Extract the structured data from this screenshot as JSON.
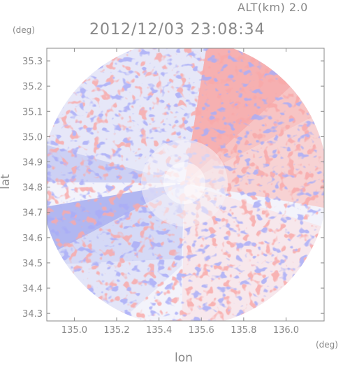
{
  "header": {
    "altitude_label": "ALT(km) 2.0",
    "timestamp": "2012/12/03 23:08:34"
  },
  "axes": {
    "y_unit": "(deg)",
    "x_unit": "(deg)",
    "y_label": "lat",
    "x_label": "lon"
  },
  "map_data": {
    "type": "radar-ppi-doppler",
    "x_ticks": [
      "135.0",
      "135.2",
      "135.4",
      "135.6",
      "135.8",
      "136.0"
    ],
    "x_tick_values": [
      135.0,
      135.2,
      135.4,
      135.6,
      135.8,
      136.0
    ],
    "y_ticks": [
      "34.3",
      "34.4",
      "34.5",
      "34.6",
      "34.7",
      "34.8",
      "34.9",
      "35.0",
      "35.1",
      "35.2",
      "35.3"
    ],
    "y_tick_values": [
      34.3,
      34.4,
      34.5,
      34.6,
      34.7,
      34.8,
      34.9,
      35.0,
      35.1,
      35.2,
      35.3
    ],
    "xlim": [
      134.87,
      136.18
    ],
    "ylim": [
      34.27,
      35.35
    ],
    "radar_center": [
      135.52,
      34.81
    ],
    "colors": {
      "positive": "#f08080",
      "negative": "#8080f0",
      "neutral": "#f4f4fb",
      "frame": "#888888"
    }
  }
}
